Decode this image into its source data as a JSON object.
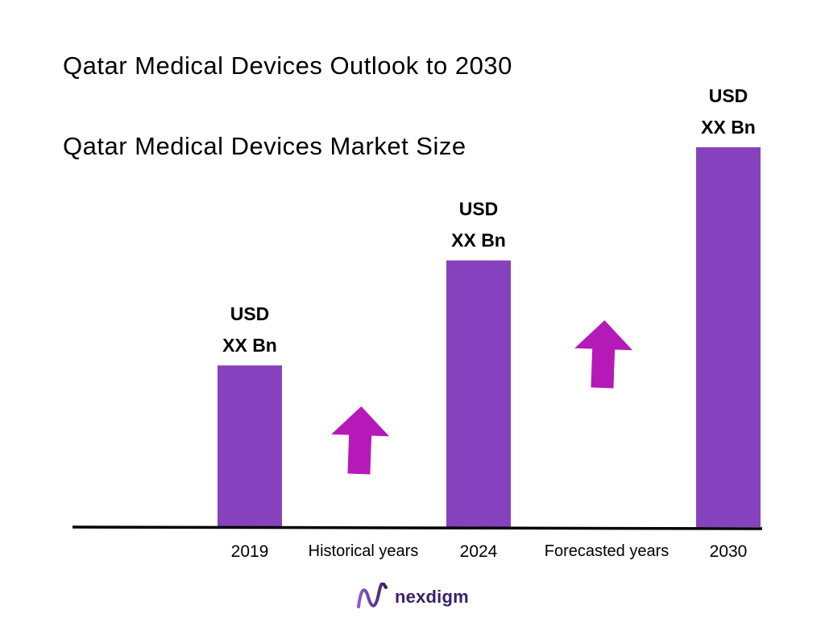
{
  "chart_data": {
    "type": "bar",
    "title": "Qatar Medical Devices Outlook to 2030",
    "subtitle": "Qatar Medical Devices Market Size",
    "categories": [
      "2019",
      "2024",
      "2030"
    ],
    "values": [
      1,
      1.65,
      2.35
    ],
    "bar_labels": [
      [
        "USD",
        "XX Bn"
      ],
      [
        "USD",
        "XX Bn"
      ],
      [
        "USD",
        "XX Bn"
      ]
    ],
    "period_labels": [
      "Historical years",
      "Forecasted years"
    ],
    "trend": [
      "up",
      "up"
    ],
    "ylim": [
      0,
      2.35
    ],
    "grid": false,
    "legend": "none",
    "colors": {
      "bar": "#8642be",
      "arrow": "#b51ab9",
      "axis": "#000000"
    }
  },
  "brand": {
    "logo_text": "nexdigm",
    "logo_icon": "nexdigm-wave-logo-icon",
    "colors": {
      "start": "#8a5bd6",
      "end": "#3a1f6b"
    }
  }
}
